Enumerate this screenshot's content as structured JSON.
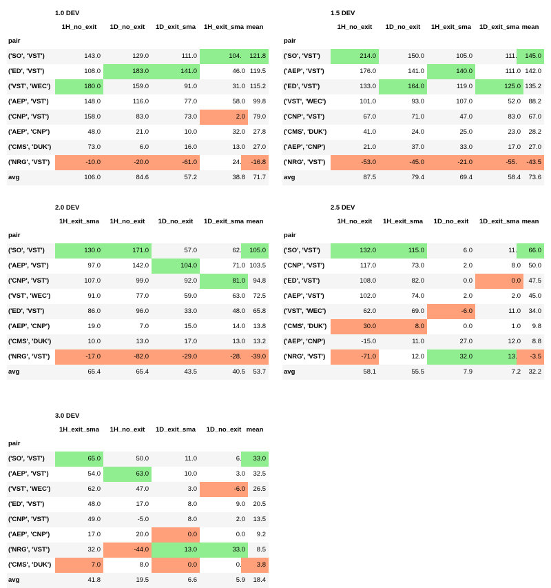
{
  "tables": [
    {
      "title": "1.0 DEV",
      "columns": [
        "1H_no_exit",
        "1D_no_exit",
        "1D_exit_sma",
        "1H_exit_sma",
        "mean"
      ],
      "index_name": "pair",
      "rows": [
        {
          "pair": "('SO', 'VST')",
          "values": [
            "143.0",
            "129.0",
            "111.0",
            "104.0",
            "121.8"
          ],
          "hl": [
            "",
            "",
            "",
            "green",
            "green"
          ]
        },
        {
          "pair": "('ED', 'VST')",
          "values": [
            "108.0",
            "183.0",
            "141.0",
            "46.0",
            "119.5"
          ],
          "hl": [
            "",
            "green",
            "green",
            "",
            ""
          ]
        },
        {
          "pair": "('VST', 'WEC')",
          "values": [
            "180.0",
            "159.0",
            "91.0",
            "31.0",
            "115.2"
          ],
          "hl": [
            "green",
            "",
            "",
            "",
            ""
          ]
        },
        {
          "pair": "('AEP', 'VST')",
          "values": [
            "148.0",
            "116.0",
            "77.0",
            "58.0",
            "99.8"
          ],
          "hl": [
            "",
            "",
            "",
            "",
            ""
          ]
        },
        {
          "pair": "('CNP', 'VST')",
          "values": [
            "158.0",
            "83.0",
            "73.0",
            "2.0",
            "79.0"
          ],
          "hl": [
            "",
            "",
            "",
            "red",
            ""
          ]
        },
        {
          "pair": "('AEP', 'CNP')",
          "values": [
            "48.0",
            "21.0",
            "10.0",
            "32.0",
            "27.8"
          ],
          "hl": [
            "",
            "",
            "",
            "",
            ""
          ]
        },
        {
          "pair": "('CMS', 'DUK')",
          "values": [
            "73.0",
            "6.0",
            "16.0",
            "13.0",
            "27.0"
          ],
          "hl": [
            "",
            "",
            "",
            "",
            ""
          ]
        },
        {
          "pair": "('NRG', 'VST')",
          "values": [
            "-10.0",
            "-20.0",
            "-61.0",
            "24.0",
            "-16.8"
          ],
          "hl": [
            "red",
            "red",
            "red",
            "",
            "red"
          ]
        },
        {
          "pair": "avg",
          "values": [
            "106.0",
            "84.6",
            "57.2",
            "38.8",
            "71.7"
          ],
          "hl": [
            "",
            "",
            "",
            "",
            ""
          ]
        }
      ]
    },
    {
      "title": "1.5 DEV",
      "columns": [
        "1H_no_exit",
        "1D_no_exit",
        "1H_exit_sma",
        "1D_exit_sma",
        "mean"
      ],
      "index_name": "pair",
      "rows": [
        {
          "pair": "('SO', 'VST')",
          "values": [
            "214.0",
            "150.0",
            "105.0",
            "111.0",
            "145.0"
          ],
          "hl": [
            "green",
            "",
            "",
            "",
            "green"
          ]
        },
        {
          "pair": "('AEP', 'VST')",
          "values": [
            "176.0",
            "141.0",
            "140.0",
            "111.0",
            "142.0"
          ],
          "hl": [
            "",
            "",
            "green",
            "",
            ""
          ]
        },
        {
          "pair": "('ED', 'VST')",
          "values": [
            "133.0",
            "164.0",
            "119.0",
            "125.0",
            "135.2"
          ],
          "hl": [
            "",
            "green",
            "",
            "green",
            ""
          ]
        },
        {
          "pair": "('VST', 'WEC')",
          "values": [
            "101.0",
            "93.0",
            "107.0",
            "52.0",
            "88.2"
          ],
          "hl": [
            "",
            "",
            "",
            "",
            ""
          ]
        },
        {
          "pair": "('CNP', 'VST')",
          "values": [
            "67.0",
            "71.0",
            "47.0",
            "83.0",
            "67.0"
          ],
          "hl": [
            "",
            "",
            "",
            "",
            ""
          ]
        },
        {
          "pair": "('CMS', 'DUK')",
          "values": [
            "41.0",
            "24.0",
            "25.0",
            "23.0",
            "28.2"
          ],
          "hl": [
            "",
            "",
            "",
            "",
            ""
          ]
        },
        {
          "pair": "('AEP', 'CNP')",
          "values": [
            "21.0",
            "37.0",
            "33.0",
            "17.0",
            "27.0"
          ],
          "hl": [
            "",
            "",
            "",
            "",
            ""
          ]
        },
        {
          "pair": "('NRG', 'VST')",
          "values": [
            "-53.0",
            "-45.0",
            "-21.0",
            "-55.0",
            "-43.5"
          ],
          "hl": [
            "red",
            "red",
            "red",
            "red",
            "red"
          ]
        },
        {
          "pair": "avg",
          "values": [
            "87.5",
            "79.4",
            "69.4",
            "58.4",
            "73.6"
          ],
          "hl": [
            "",
            "",
            "",
            "",
            ""
          ]
        }
      ]
    },
    {
      "title": "2.0 DEV",
      "columns": [
        "1H_exit_sma",
        "1H_no_exit",
        "1D_no_exit",
        "1D_exit_sma",
        "mean"
      ],
      "index_name": "pair",
      "rows": [
        {
          "pair": "('SO', 'VST')",
          "values": [
            "130.0",
            "171.0",
            "57.0",
            "62.0",
            "105.0"
          ],
          "hl": [
            "green",
            "green",
            "",
            "",
            "green"
          ]
        },
        {
          "pair": "('AEP', 'VST')",
          "values": [
            "97.0",
            "142.0",
            "104.0",
            "71.0",
            "103.5"
          ],
          "hl": [
            "",
            "",
            "green",
            "",
            ""
          ]
        },
        {
          "pair": "('CNP', 'VST')",
          "values": [
            "107.0",
            "99.0",
            "92.0",
            "81.0",
            "94.8"
          ],
          "hl": [
            "",
            "",
            "",
            "green",
            ""
          ]
        },
        {
          "pair": "('VST', 'WEC')",
          "values": [
            "91.0",
            "77.0",
            "59.0",
            "63.0",
            "72.5"
          ],
          "hl": [
            "",
            "",
            "",
            "",
            ""
          ]
        },
        {
          "pair": "('ED', 'VST')",
          "values": [
            "86.0",
            "96.0",
            "33.0",
            "48.0",
            "65.8"
          ],
          "hl": [
            "",
            "",
            "",
            "",
            ""
          ]
        },
        {
          "pair": "('AEP', 'CNP')",
          "values": [
            "19.0",
            "7.0",
            "15.0",
            "14.0",
            "13.8"
          ],
          "hl": [
            "",
            "",
            "",
            "",
            ""
          ]
        },
        {
          "pair": "('CMS', 'DUK')",
          "values": [
            "10.0",
            "13.0",
            "17.0",
            "13.0",
            "13.2"
          ],
          "hl": [
            "",
            "",
            "",
            "",
            ""
          ]
        },
        {
          "pair": "('NRG', 'VST')",
          "values": [
            "-17.0",
            "-82.0",
            "-29.0",
            "-28.0",
            "-39.0"
          ],
          "hl": [
            "red",
            "red",
            "red",
            "red",
            "red"
          ]
        },
        {
          "pair": "avg",
          "values": [
            "65.4",
            "65.4",
            "43.5",
            "40.5",
            "53.7"
          ],
          "hl": [
            "",
            "",
            "",
            "",
            ""
          ]
        }
      ]
    },
    {
      "title": "2.5 DEV",
      "columns": [
        "1H_no_exit",
        "1H_exit_sma",
        "1D_no_exit",
        "1D_exit_sma",
        "mean"
      ],
      "index_name": "pair",
      "rows": [
        {
          "pair": "('SO', 'VST')",
          "values": [
            "132.0",
            "115.0",
            "6.0",
            "11.0",
            "66.0"
          ],
          "hl": [
            "green",
            "green",
            "",
            "",
            "green"
          ]
        },
        {
          "pair": "('CNP', 'VST')",
          "values": [
            "117.0",
            "73.0",
            "2.0",
            "8.0",
            "50.0"
          ],
          "hl": [
            "",
            "",
            "",
            "",
            ""
          ]
        },
        {
          "pair": "('ED', 'VST')",
          "values": [
            "108.0",
            "82.0",
            "0.0",
            "0.0",
            "47.5"
          ],
          "hl": [
            "",
            "",
            "",
            "red",
            ""
          ]
        },
        {
          "pair": "('AEP', 'VST')",
          "values": [
            "102.0",
            "74.0",
            "2.0",
            "2.0",
            "45.0"
          ],
          "hl": [
            "",
            "",
            "",
            "",
            ""
          ]
        },
        {
          "pair": "('VST', 'WEC')",
          "values": [
            "62.0",
            "69.0",
            "-6.0",
            "11.0",
            "34.0"
          ],
          "hl": [
            "",
            "",
            "red",
            "",
            ""
          ]
        },
        {
          "pair": "('CMS', 'DUK')",
          "values": [
            "30.0",
            "8.0",
            "0.0",
            "1.0",
            "9.8"
          ],
          "hl": [
            "red",
            "red",
            "",
            "",
            ""
          ]
        },
        {
          "pair": "('AEP', 'CNP')",
          "values": [
            "-15.0",
            "11.0",
            "27.0",
            "12.0",
            "8.8"
          ],
          "hl": [
            "",
            "",
            "",
            "",
            ""
          ]
        },
        {
          "pair": "('NRG', 'VST')",
          "values": [
            "-71.0",
            "12.0",
            "32.0",
            "13.0",
            "-3.5"
          ],
          "hl": [
            "red",
            "",
            "green",
            "green",
            "red"
          ]
        },
        {
          "pair": "avg",
          "values": [
            "58.1",
            "55.5",
            "7.9",
            "7.2",
            "32.2"
          ],
          "hl": [
            "",
            "",
            "",
            "",
            ""
          ]
        }
      ]
    },
    {
      "title": "3.0 DEV",
      "columns": [
        "1H_exit_sma",
        "1H_no_exit",
        "1D_exit_sma",
        "1D_no_exit",
        "mean"
      ],
      "index_name": "pair",
      "rows": [
        {
          "pair": "('SO', 'VST')",
          "values": [
            "65.0",
            "50.0",
            "11.0",
            "6.0",
            "33.0"
          ],
          "hl": [
            "green",
            "",
            "",
            "",
            "green"
          ]
        },
        {
          "pair": "('AEP', 'VST')",
          "values": [
            "54.0",
            "63.0",
            "10.0",
            "3.0",
            "32.5"
          ],
          "hl": [
            "",
            "green",
            "",
            "",
            ""
          ]
        },
        {
          "pair": "('VST', 'WEC')",
          "values": [
            "62.0",
            "47.0",
            "3.0",
            "-6.0",
            "26.5"
          ],
          "hl": [
            "",
            "",
            "",
            "red",
            ""
          ]
        },
        {
          "pair": "('ED', 'VST')",
          "values": [
            "48.0",
            "17.0",
            "8.0",
            "9.0",
            "20.5"
          ],
          "hl": [
            "",
            "",
            "",
            "",
            ""
          ]
        },
        {
          "pair": "('CNP', 'VST')",
          "values": [
            "49.0",
            "-5.0",
            "8.0",
            "2.0",
            "13.5"
          ],
          "hl": [
            "",
            "",
            "",
            "",
            ""
          ]
        },
        {
          "pair": "('AEP', 'CNP')",
          "values": [
            "17.0",
            "20.0",
            "0.0",
            "0.0",
            "9.2"
          ],
          "hl": [
            "",
            "",
            "red",
            "",
            ""
          ]
        },
        {
          "pair": "('NRG', 'VST')",
          "values": [
            "32.0",
            "-44.0",
            "13.0",
            "33.0",
            "8.5"
          ],
          "hl": [
            "",
            "red",
            "green",
            "green",
            ""
          ]
        },
        {
          "pair": "('CMS', 'DUK')",
          "values": [
            "7.0",
            "8.0",
            "0.0",
            "0.0",
            "3.8"
          ],
          "hl": [
            "red",
            "",
            "red",
            "",
            "red"
          ]
        },
        {
          "pair": "avg",
          "values": [
            "41.8",
            "19.5",
            "6.6",
            "5.9",
            "18.4"
          ],
          "hl": [
            "",
            "",
            "",
            "",
            ""
          ]
        }
      ]
    }
  ]
}
